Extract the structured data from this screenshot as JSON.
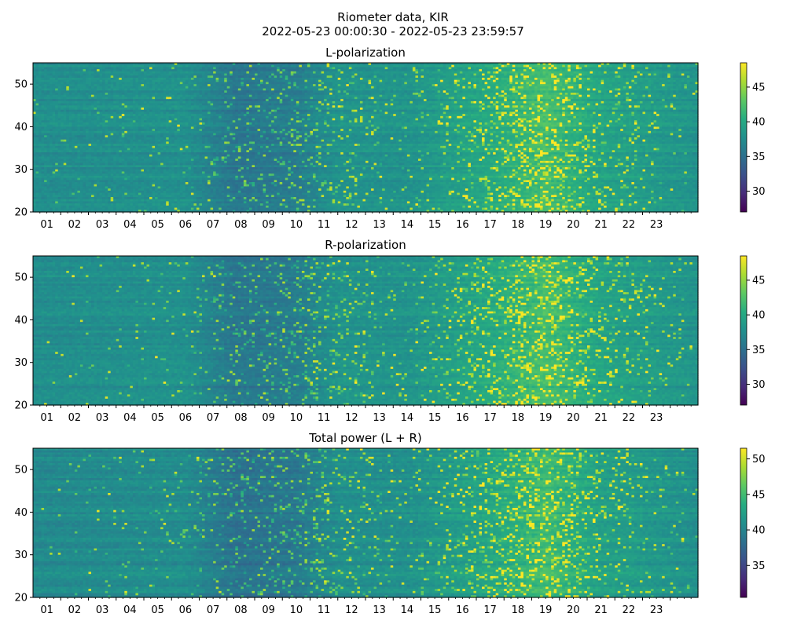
{
  "figure": {
    "title_line1": "Riometer data, KIR",
    "title_line2": "2022-05-23 00:00:30 - 2022-05-23 23:59:57"
  },
  "chart_data": [
    {
      "type": "heatmap",
      "title": "L-polarization",
      "xlabel": "",
      "ylabel": "",
      "xlim": [
        0,
        24
      ],
      "ylim": [
        20,
        55
      ],
      "x_tick_labels": [
        "01",
        "02",
        "03",
        "04",
        "05",
        "06",
        "07",
        "08",
        "09",
        "10",
        "11",
        "12",
        "13",
        "14",
        "15",
        "16",
        "17",
        "18",
        "19",
        "20",
        "21",
        "22",
        "23"
      ],
      "y_tick_labels": [
        "20",
        "30",
        "40",
        "50"
      ],
      "y_ticks": [
        20,
        30,
        40,
        50
      ],
      "colorbar": {
        "colormap": "viridis",
        "range": [
          27,
          48.5
        ],
        "tick_labels": [
          "30",
          "35",
          "40",
          "45"
        ],
        "ticks": [
          30,
          35,
          40,
          45
        ]
      },
      "baseline_value": 38,
      "hour_profile": [
        {
          "hour": 0,
          "value": 37.5,
          "spikiness": 0.02
        },
        {
          "hour": 5.5,
          "value": 37.8,
          "spikiness": 0.1
        },
        {
          "hour": 7.3,
          "value": 35.5,
          "spikiness": 0.3
        },
        {
          "hour": 9.5,
          "value": 36.0,
          "spikiness": 0.4
        },
        {
          "hour": 11.0,
          "value": 38.0,
          "spikiness": 0.35
        },
        {
          "hour": 13.5,
          "value": 38.0,
          "spikiness": 0.1
        },
        {
          "hour": 16.5,
          "value": 40.0,
          "spikiness": 0.45
        },
        {
          "hour": 18.5,
          "value": 42.0,
          "spikiness": 0.7
        },
        {
          "hour": 20.5,
          "value": 39.5,
          "spikiness": 0.35
        },
        {
          "hour": 24.0,
          "value": 38.0,
          "spikiness": 0.05
        }
      ]
    },
    {
      "type": "heatmap",
      "title": "R-polarization",
      "xlabel": "",
      "ylabel": "",
      "xlim": [
        0,
        24
      ],
      "ylim": [
        20,
        55
      ],
      "x_tick_labels": [
        "01",
        "02",
        "03",
        "04",
        "05",
        "06",
        "07",
        "08",
        "09",
        "10",
        "11",
        "12",
        "13",
        "14",
        "15",
        "16",
        "17",
        "18",
        "19",
        "20",
        "21",
        "22",
        "23"
      ],
      "y_tick_labels": [
        "20",
        "30",
        "40",
        "50"
      ],
      "y_ticks": [
        20,
        30,
        40,
        50
      ],
      "colorbar": {
        "colormap": "viridis",
        "range": [
          27,
          48.5
        ],
        "tick_labels": [
          "30",
          "35",
          "40",
          "45"
        ],
        "ticks": [
          30,
          35,
          40,
          45
        ]
      },
      "baseline_value": 38,
      "hour_profile": [
        {
          "hour": 0,
          "value": 37.5,
          "spikiness": 0.02
        },
        {
          "hour": 5.5,
          "value": 37.8,
          "spikiness": 0.1
        },
        {
          "hour": 7.3,
          "value": 35.5,
          "spikiness": 0.3
        },
        {
          "hour": 9.5,
          "value": 36.0,
          "spikiness": 0.4
        },
        {
          "hour": 11.0,
          "value": 38.0,
          "spikiness": 0.35
        },
        {
          "hour": 13.5,
          "value": 38.0,
          "spikiness": 0.1
        },
        {
          "hour": 16.5,
          "value": 40.0,
          "spikiness": 0.45
        },
        {
          "hour": 18.5,
          "value": 42.0,
          "spikiness": 0.7
        },
        {
          "hour": 20.5,
          "value": 39.5,
          "spikiness": 0.35
        },
        {
          "hour": 24.0,
          "value": 38.0,
          "spikiness": 0.05
        }
      ]
    },
    {
      "type": "heatmap",
      "title": "Total power (L + R)",
      "xlabel": "",
      "ylabel": "",
      "xlim": [
        0,
        24
      ],
      "ylim": [
        20,
        55
      ],
      "x_tick_labels": [
        "01",
        "02",
        "03",
        "04",
        "05",
        "06",
        "07",
        "08",
        "09",
        "10",
        "11",
        "12",
        "13",
        "14",
        "15",
        "16",
        "17",
        "18",
        "19",
        "20",
        "21",
        "22",
        "23"
      ],
      "y_tick_labels": [
        "20",
        "30",
        "40",
        "50"
      ],
      "y_ticks": [
        20,
        30,
        40,
        50
      ],
      "colorbar": {
        "colormap": "viridis",
        "range": [
          30.5,
          51.5
        ],
        "tick_labels": [
          "35",
          "40",
          "45",
          "50"
        ],
        "ticks": [
          35,
          40,
          45,
          50
        ]
      },
      "baseline_value": 41,
      "hour_profile": [
        {
          "hour": 0,
          "value": 40.5,
          "spikiness": 0.02
        },
        {
          "hour": 5.5,
          "value": 40.8,
          "spikiness": 0.1
        },
        {
          "hour": 7.3,
          "value": 38.5,
          "spikiness": 0.3
        },
        {
          "hour": 9.5,
          "value": 39.0,
          "spikiness": 0.4
        },
        {
          "hour": 11.0,
          "value": 41.0,
          "spikiness": 0.35
        },
        {
          "hour": 13.5,
          "value": 41.0,
          "spikiness": 0.1
        },
        {
          "hour": 16.5,
          "value": 43.0,
          "spikiness": 0.45
        },
        {
          "hour": 18.5,
          "value": 45.0,
          "spikiness": 0.7
        },
        {
          "hour": 20.5,
          "value": 42.5,
          "spikiness": 0.35
        },
        {
          "hour": 24.0,
          "value": 41.0,
          "spikiness": 0.05
        }
      ]
    }
  ]
}
